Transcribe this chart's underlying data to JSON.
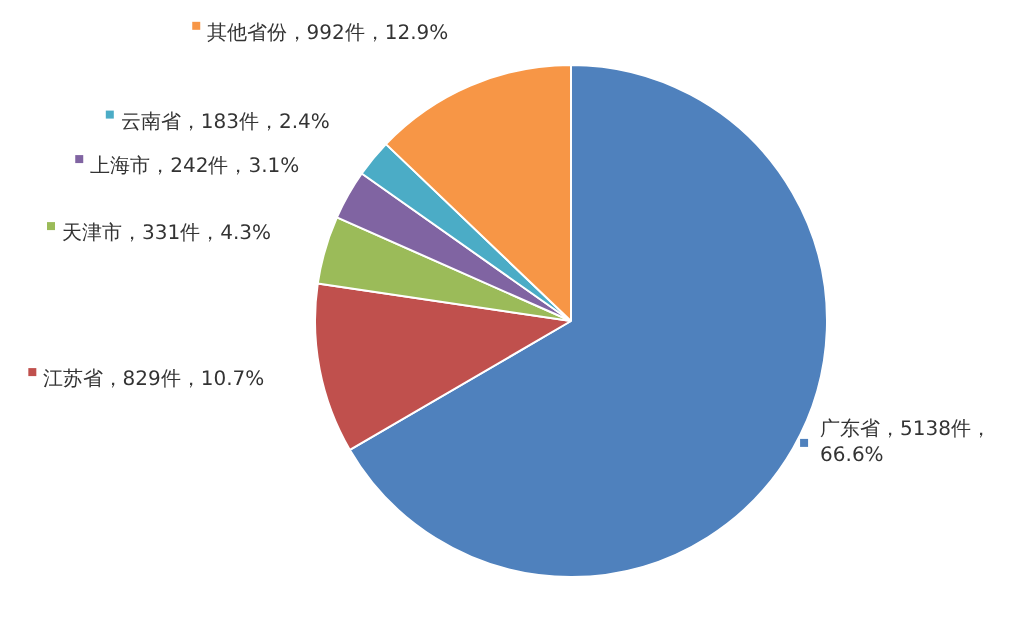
{
  "chart_data": {
    "type": "pie",
    "categories": [
      "广东省",
      "江苏省",
      "天津市",
      "上海市",
      "云南省",
      "其他省份"
    ],
    "values": [
      5138,
      829,
      331,
      242,
      183,
      992
    ],
    "colors": [
      "#4f81bd",
      "#c0504d",
      "#9bbb59",
      "#8064a2",
      "#4bacc6",
      "#f79646"
    ],
    "value_labels": [
      "5138件，66.6%",
      "829件，10.7%",
      "331件，4.3%",
      "242件，3.1%",
      "183件，2.4%",
      "992件，12.9%"
    ],
    "legend": "left"
  }
}
